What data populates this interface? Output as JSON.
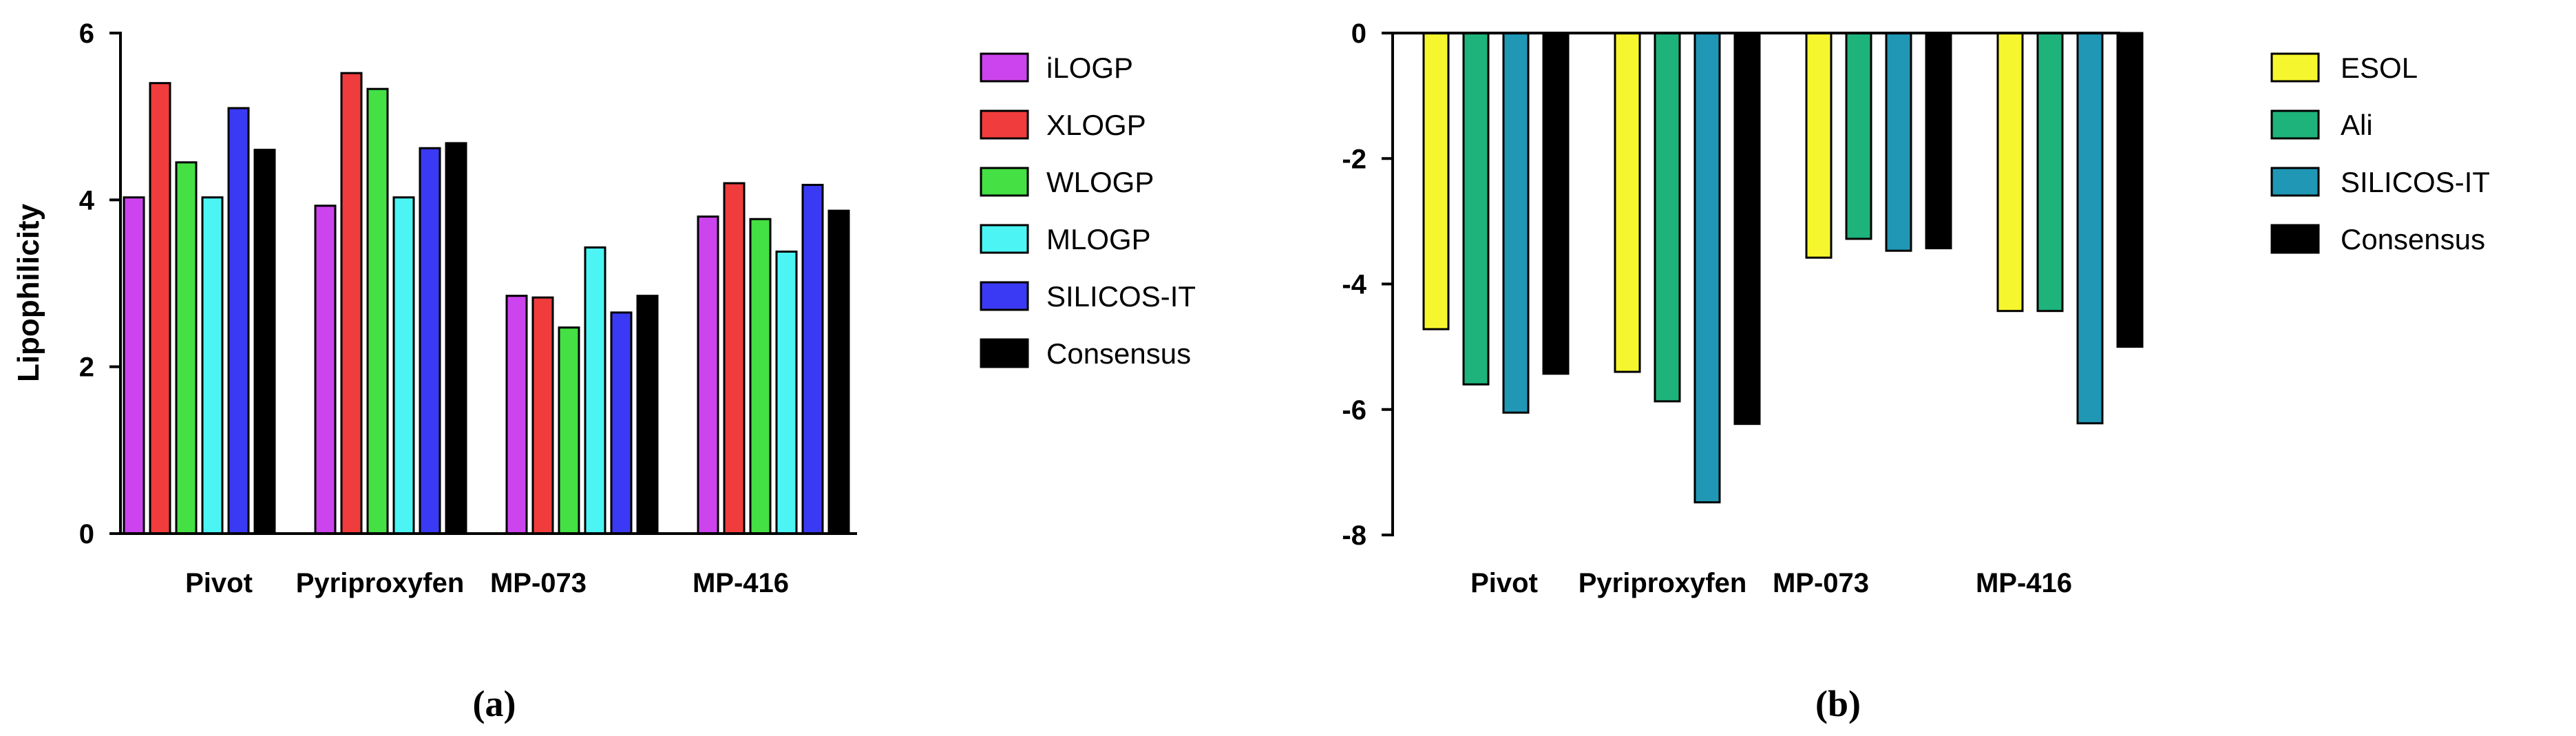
{
  "chart_data": [
    {
      "type": "bar",
      "panel_label": "(a)",
      "title": "",
      "xlabel": "",
      "ylabel": "Lipophilicity",
      "ylim": [
        0,
        6
      ],
      "yticks": [
        0,
        2,
        4,
        6
      ],
      "categories": [
        "Pivot",
        "Pyriproxyfen",
        "MP-073",
        "MP-416"
      ],
      "legend_position": "right",
      "grid": false,
      "series": [
        {
          "name": "iLOGP",
          "color": "#cc44ee",
          "values": [
            4.03,
            3.93,
            2.85,
            3.8
          ]
        },
        {
          "name": "XLOGP",
          "color": "#f03c3c",
          "values": [
            5.4,
            5.52,
            2.83,
            4.2
          ]
        },
        {
          "name": "WLOGP",
          "color": "#44e044",
          "values": [
            4.45,
            5.33,
            2.47,
            3.77
          ]
        },
        {
          "name": "MLOGP",
          "color": "#4cf4f4",
          "values": [
            4.03,
            4.03,
            3.43,
            3.38
          ]
        },
        {
          "name": "SILICOS-IT",
          "color": "#3a3af4",
          "values": [
            5.1,
            4.62,
            2.65,
            4.18
          ]
        },
        {
          "name": "Consensus",
          "color": "#000000",
          "values": [
            4.6,
            4.68,
            2.85,
            3.87
          ]
        }
      ]
    },
    {
      "type": "bar",
      "panel_label": "(b)",
      "title": "",
      "xlabel": "",
      "ylabel": "",
      "ylim": [
        -8,
        0
      ],
      "yticks": [
        0,
        -2,
        -4,
        -6,
        -8
      ],
      "categories": [
        "Pivot",
        "Pyriproxyfen",
        "MP-073",
        "MP-416"
      ],
      "legend_position": "right",
      "grid": false,
      "series": [
        {
          "name": "ESOL",
          "color": "#f6f62e",
          "values": [
            -4.72,
            -5.4,
            -3.58,
            -4.43
          ]
        },
        {
          "name": "Ali",
          "color": "#1db37a",
          "values": [
            -5.6,
            -5.87,
            -3.28,
            -4.43
          ]
        },
        {
          "name": "SILICOS-IT",
          "color": "#1f97b5",
          "values": [
            -6.05,
            -7.48,
            -3.47,
            -6.22
          ]
        },
        {
          "name": "Consensus",
          "color": "#000000",
          "values": [
            -5.43,
            -6.23,
            -3.43,
            -5.0
          ]
        }
      ]
    }
  ]
}
